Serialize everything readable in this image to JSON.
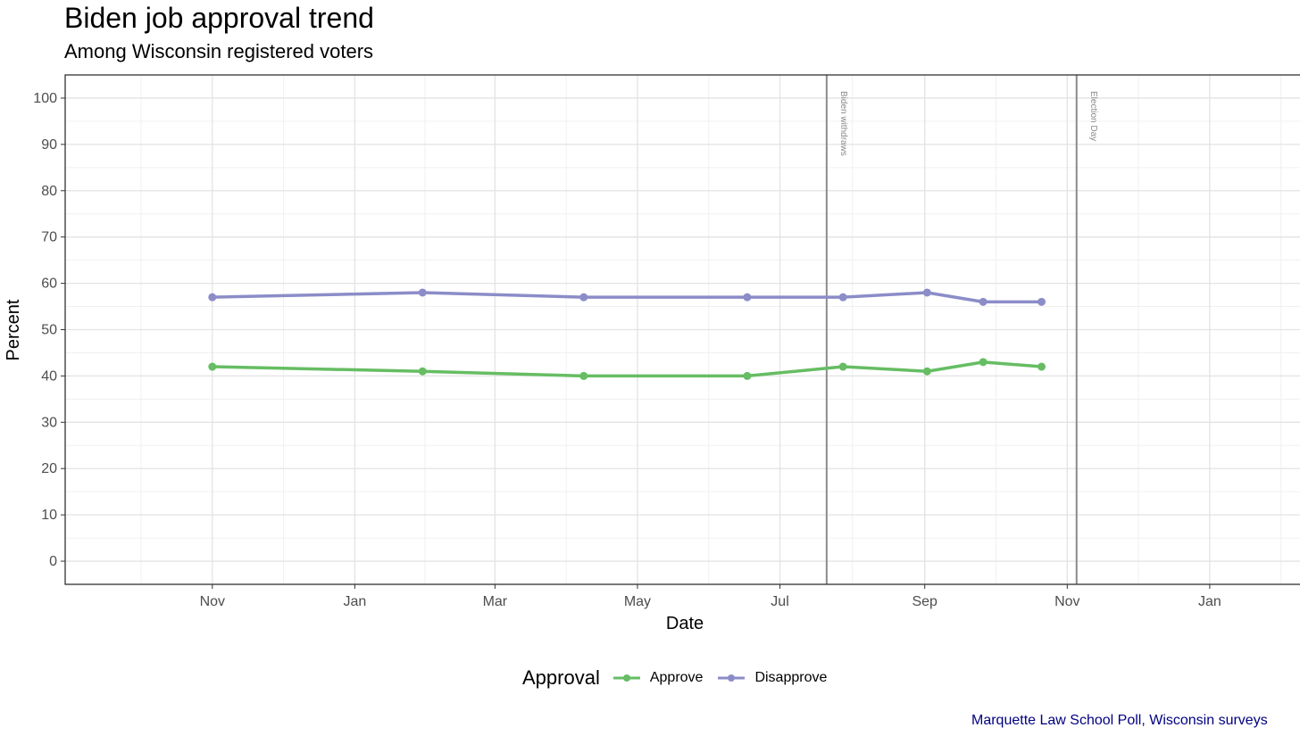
{
  "chart_data": {
    "type": "line",
    "title": "Biden job approval trend",
    "subtitle": "Among Wisconsin registered voters",
    "xlabel": "Date",
    "ylabel": "Percent",
    "xlim": [
      "2023-08-30",
      "2025-02-14"
    ],
    "ylim": [
      -5,
      105
    ],
    "y_ticks": [
      0,
      10,
      20,
      30,
      40,
      50,
      60,
      70,
      80,
      90,
      100
    ],
    "x_ticks": [
      {
        "date": "2023-11-01",
        "label": "Nov"
      },
      {
        "date": "2024-01-01",
        "label": "Jan"
      },
      {
        "date": "2024-03-01",
        "label": "Mar"
      },
      {
        "date": "2024-05-01",
        "label": "May"
      },
      {
        "date": "2024-07-01",
        "label": "Jul"
      },
      {
        "date": "2024-09-01",
        "label": "Sep"
      },
      {
        "date": "2024-11-01",
        "label": "Nov"
      },
      {
        "date": "2025-01-01",
        "label": "Jan"
      }
    ],
    "grid": true,
    "legend": {
      "title": "Approval",
      "position": "bottom"
    },
    "series": [
      {
        "name": "Approve",
        "color": "#66bd63",
        "x": [
          "2023-11-01",
          "2024-01-30",
          "2024-04-08",
          "2024-06-17",
          "2024-07-28",
          "2024-09-02",
          "2024-09-26",
          "2024-10-21"
        ],
        "values": [
          42,
          41,
          40,
          40,
          42,
          41,
          43,
          42
        ]
      },
      {
        "name": "Disapprove",
        "color": "#8b8cc8",
        "x": [
          "2023-11-01",
          "2024-01-30",
          "2024-04-08",
          "2024-06-17",
          "2024-07-28",
          "2024-09-02",
          "2024-09-26",
          "2024-10-21"
        ],
        "values": [
          57,
          58,
          57,
          57,
          57,
          58,
          56,
          56
        ]
      }
    ],
    "annotations": [
      {
        "date": "2024-07-21",
        "label": "Biden withdraws"
      },
      {
        "date": "2024-11-05",
        "label": "Election Day"
      }
    ],
    "caption": "Marquette Law School Poll, Wisconsin surveys"
  }
}
